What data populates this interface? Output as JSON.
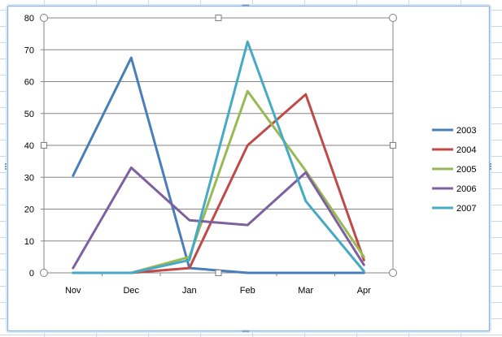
{
  "chart_data": {
    "type": "line",
    "categories": [
      "Nov",
      "Dec",
      "Jan",
      "Feb",
      "Mar",
      "Apr"
    ],
    "ylim": [
      0,
      80
    ],
    "yticks": [
      0,
      10,
      20,
      30,
      40,
      50,
      60,
      70,
      80
    ],
    "grid": true,
    "legend_position": "right",
    "series": [
      {
        "name": "2003",
        "color": "#4a7ebb",
        "values": [
          30.5,
          67.5,
          1.5,
          0,
          0,
          0
        ]
      },
      {
        "name": "2004",
        "color": "#be4b48",
        "values": [
          0,
          0,
          1.5,
          40,
          56,
          4
        ]
      },
      {
        "name": "2005",
        "color": "#98b954",
        "values": [
          0,
          0,
          5,
          57,
          32,
          5
        ]
      },
      {
        "name": "2006",
        "color": "#7d60a0",
        "values": [
          1.5,
          33,
          16.5,
          15,
          31.5,
          2.5
        ]
      },
      {
        "name": "2007",
        "color": "#46aac5",
        "values": [
          0,
          0,
          4,
          72.5,
          22.5,
          0.5
        ]
      }
    ]
  }
}
